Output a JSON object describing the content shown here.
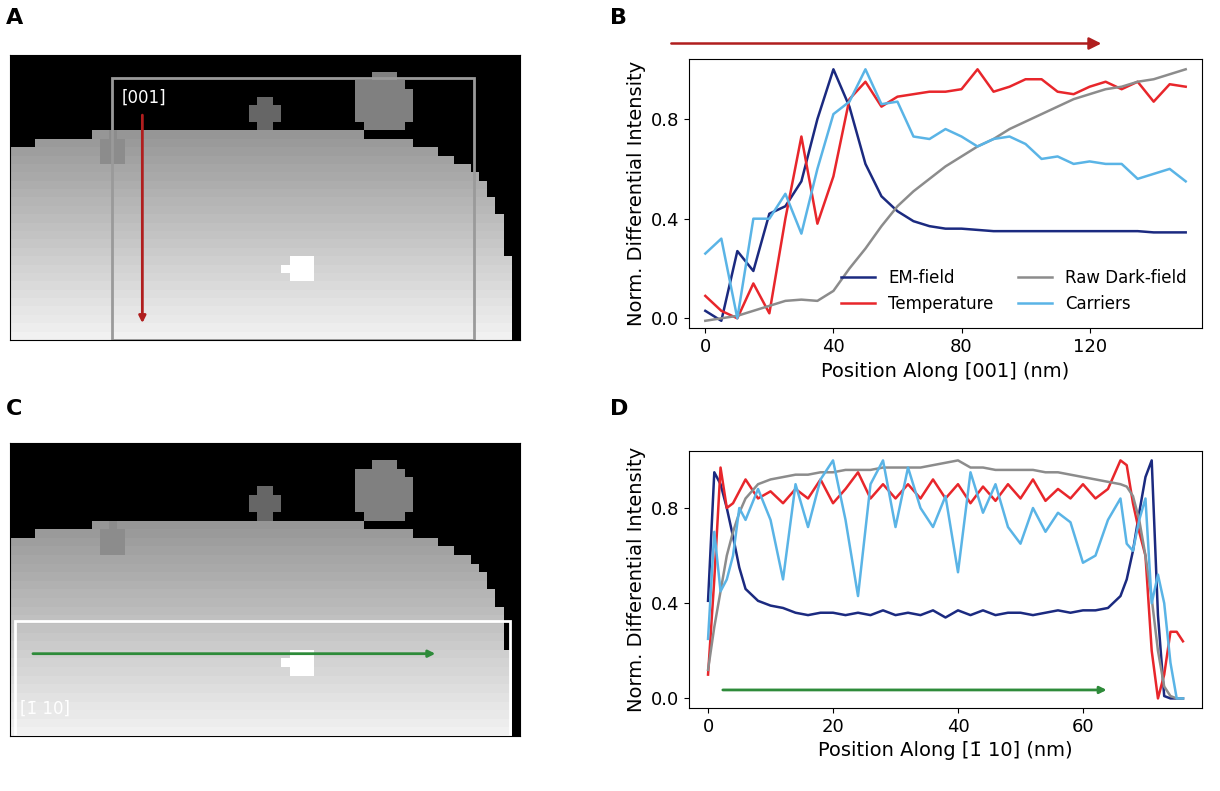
{
  "chart_data": [
    {
      "type": "image",
      "panel": "A",
      "annotation": "[001]",
      "tick_labels": false
    },
    {
      "type": "line",
      "panel": "B",
      "xlabel": "Position Along [001] (nm)",
      "ylabel": "Norm. Differential Intensity",
      "x": [
        0,
        5,
        10,
        15,
        20,
        25,
        30,
        35,
        40,
        45,
        50,
        55,
        60,
        65,
        70,
        75,
        80,
        85,
        90,
        95,
        100,
        105,
        110,
        115,
        120,
        125,
        130,
        135,
        140,
        145,
        150
      ],
      "xlim": [
        -5,
        155
      ],
      "xticks": [
        0,
        40,
        80,
        120
      ],
      "ylim": [
        -0.04,
        1.04
      ],
      "yticks": [
        0.0,
        0.4,
        0.8
      ],
      "legend": "lower right",
      "series": [
        {
          "name": "EM-field",
          "color": "#1b2a80",
          "values": [
            0.03,
            -0.01,
            0.27,
            0.19,
            0.42,
            0.45,
            0.55,
            0.8,
            1.0,
            0.85,
            0.62,
            0.49,
            0.43,
            0.39,
            0.37,
            0.36,
            0.36,
            0.355,
            0.35,
            0.35,
            0.35,
            0.35,
            0.35,
            0.35,
            0.35,
            0.35,
            0.35,
            0.35,
            0.345,
            0.345,
            0.345
          ]
        },
        {
          "name": "Temperature",
          "color": "#e8262b",
          "values": [
            0.09,
            0.03,
            0.0,
            0.14,
            0.02,
            0.4,
            0.73,
            0.38,
            0.57,
            0.88,
            0.95,
            0.85,
            0.89,
            0.9,
            0.91,
            0.91,
            0.92,
            1.0,
            0.91,
            0.93,
            0.96,
            0.96,
            0.91,
            0.9,
            0.93,
            0.95,
            0.92,
            0.95,
            0.87,
            0.94,
            0.93
          ]
        },
        {
          "name": "Raw Dark-field",
          "color": "#8c8c8c",
          "values": [
            -0.01,
            0.0,
            0.01,
            0.03,
            0.05,
            0.07,
            0.075,
            0.07,
            0.11,
            0.2,
            0.28,
            0.37,
            0.45,
            0.51,
            0.56,
            0.61,
            0.65,
            0.69,
            0.72,
            0.76,
            0.79,
            0.82,
            0.85,
            0.88,
            0.9,
            0.92,
            0.93,
            0.95,
            0.96,
            0.98,
            1.0
          ]
        },
        {
          "name": "Carriers",
          "color": "#5ab4e6",
          "values": [
            0.26,
            0.32,
            0.0,
            0.4,
            0.4,
            0.5,
            0.34,
            0.6,
            0.82,
            0.87,
            1.0,
            0.86,
            0.87,
            0.73,
            0.72,
            0.76,
            0.73,
            0.69,
            0.72,
            0.73,
            0.7,
            0.64,
            0.65,
            0.62,
            0.63,
            0.62,
            0.62,
            0.56,
            0.58,
            0.6,
            0.55
          ]
        }
      ]
    },
    {
      "type": "image",
      "panel": "C",
      "annotation": "[1̄ 10]",
      "tick_labels": false
    },
    {
      "type": "line",
      "panel": "D",
      "xlabel": "Position Along [1̄ 10] (nm)",
      "ylabel": "Norm. Differential Intensity",
      "x": [
        0,
        1,
        2,
        3,
        4,
        5,
        6,
        8,
        10,
        12,
        14,
        16,
        18,
        20,
        22,
        24,
        26,
        28,
        30,
        32,
        34,
        36,
        38,
        40,
        42,
        44,
        46,
        48,
        50,
        52,
        54,
        56,
        58,
        60,
        62,
        64,
        66,
        67,
        68,
        69,
        70,
        71,
        72,
        73,
        74,
        75,
        76
      ],
      "xlim": [
        -3,
        79
      ],
      "xticks": [
        0,
        20,
        40,
        60
      ],
      "ylim": [
        -0.04,
        1.04
      ],
      "yticks": [
        0.0,
        0.4,
        0.8
      ],
      "series": [
        {
          "name": "EM-field",
          "color": "#1b2a80",
          "values": [
            0.41,
            0.95,
            0.9,
            0.8,
            0.68,
            0.55,
            0.46,
            0.41,
            0.39,
            0.38,
            0.36,
            0.35,
            0.36,
            0.36,
            0.35,
            0.36,
            0.35,
            0.37,
            0.35,
            0.36,
            0.35,
            0.37,
            0.34,
            0.37,
            0.35,
            0.37,
            0.35,
            0.36,
            0.36,
            0.35,
            0.36,
            0.37,
            0.36,
            0.37,
            0.37,
            0.38,
            0.43,
            0.5,
            0.62,
            0.78,
            0.93,
            1.0,
            0.35,
            0.01,
            0.0,
            0.0,
            0.0
          ]
        },
        {
          "name": "Temperature",
          "color": "#e8262b",
          "values": [
            0.1,
            0.5,
            0.97,
            0.8,
            0.82,
            0.87,
            0.92,
            0.84,
            0.87,
            0.82,
            0.88,
            0.84,
            0.92,
            0.82,
            0.88,
            0.95,
            0.84,
            0.9,
            0.84,
            0.9,
            0.84,
            0.92,
            0.84,
            0.9,
            0.82,
            0.89,
            0.83,
            0.9,
            0.84,
            0.92,
            0.83,
            0.88,
            0.84,
            0.9,
            0.84,
            0.88,
            1.0,
            0.98,
            0.82,
            0.7,
            0.6,
            0.2,
            0.0,
            0.1,
            0.28,
            0.28,
            0.24
          ]
        },
        {
          "name": "Raw Dark-field",
          "color": "#8c8c8c",
          "values": [
            0.12,
            0.3,
            0.45,
            0.6,
            0.7,
            0.78,
            0.84,
            0.9,
            0.92,
            0.93,
            0.94,
            0.94,
            0.95,
            0.95,
            0.96,
            0.96,
            0.96,
            0.97,
            0.97,
            0.97,
            0.97,
            0.98,
            0.99,
            1.0,
            0.97,
            0.97,
            0.96,
            0.96,
            0.96,
            0.96,
            0.95,
            0.95,
            0.94,
            0.93,
            0.92,
            0.91,
            0.9,
            0.89,
            0.85,
            0.75,
            0.6,
            0.42,
            0.2,
            0.05,
            0.01,
            0.0,
            0.0
          ]
        },
        {
          "name": "Carriers",
          "color": "#5ab4e6",
          "values": [
            0.25,
            0.7,
            0.45,
            0.5,
            0.6,
            0.8,
            0.75,
            0.88,
            0.75,
            0.5,
            0.9,
            0.72,
            0.92,
            1.0,
            0.75,
            0.43,
            0.9,
            1.0,
            0.72,
            0.97,
            0.8,
            0.72,
            0.85,
            0.53,
            0.95,
            0.78,
            0.9,
            0.72,
            0.65,
            0.8,
            0.7,
            0.78,
            0.74,
            0.57,
            0.6,
            0.75,
            0.84,
            0.65,
            0.62,
            0.75,
            0.84,
            0.4,
            0.52,
            0.4,
            0.15,
            0.0,
            0.0
          ]
        }
      ]
    }
  ]
}
